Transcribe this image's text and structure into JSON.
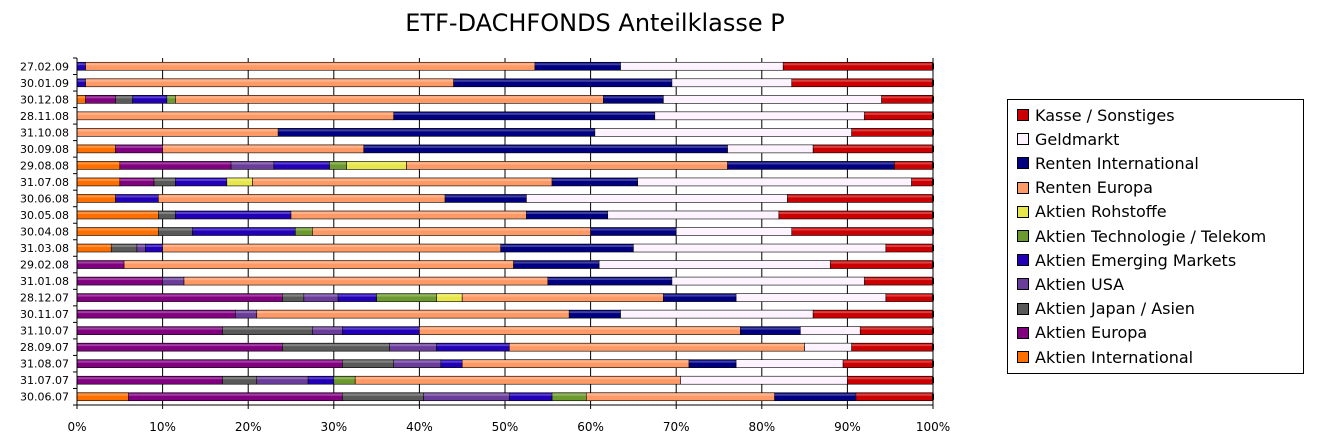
{
  "chart_data": {
    "type": "bar",
    "orientation": "horizontal-stacked-100",
    "title": "ETF-DACHFONDS Anteilklasse P",
    "xlabel": "",
    "ylabel": "",
    "xlim": [
      0,
      100
    ],
    "x_ticks": [
      "0%",
      "10%",
      "20%",
      "30%",
      "40%",
      "50%",
      "60%",
      "70%",
      "80%",
      "90%",
      "100%"
    ],
    "grid": true,
    "legend_position": "right",
    "categories": [
      "27.02.09",
      "30.01.09",
      "30.12.08",
      "28.11.08",
      "31.10.08",
      "30.09.08",
      "29.08.08",
      "31.07.08",
      "30.06.08",
      "30.05.08",
      "30.04.08",
      "31.03.08",
      "29.02.08",
      "31.01.08",
      "28.12.07",
      "30.11.07",
      "31.10.07",
      "28.09.07",
      "31.08.07",
      "31.07.07",
      "30.06.07"
    ],
    "series": [
      {
        "name": "Aktien International",
        "color": "#ff6f00",
        "values": [
          0,
          0,
          1,
          0,
          0,
          4.5,
          5,
          5,
          4.5,
          9.5,
          9.5,
          4,
          0,
          0,
          0,
          0,
          0,
          0,
          0,
          0,
          6
        ]
      },
      {
        "name": "Aktien Europa",
        "color": "#800080",
        "values": [
          0,
          0,
          3.5,
          0,
          0,
          5.5,
          13,
          4,
          0,
          0,
          0,
          0,
          5.5,
          10,
          24,
          18.5,
          17,
          24,
          31,
          17,
          25
        ]
      },
      {
        "name": "Aktien Japan / Asien",
        "color": "#595959",
        "values": [
          0,
          0,
          2,
          0,
          0,
          0,
          0,
          2.5,
          0,
          2,
          4,
          3,
          0,
          0,
          2.5,
          0,
          10.5,
          12.5,
          6,
          4,
          9.5
        ]
      },
      {
        "name": "Aktien USA",
        "color": "#6a3d9a",
        "values": [
          0,
          0,
          0,
          0,
          0,
          0,
          5,
          0,
          0,
          0,
          0,
          1,
          0,
          2.5,
          4,
          2.5,
          3.5,
          5.5,
          5.5,
          6,
          10
        ]
      },
      {
        "name": "Aktien Emerging Markets",
        "color": "#2200b8",
        "values": [
          1,
          1,
          4,
          0,
          0,
          0,
          6.5,
          6,
          5,
          13.5,
          12,
          2,
          0,
          0,
          4.5,
          0,
          9,
          8.5,
          2.5,
          3,
          5
        ]
      },
      {
        "name": "Aktien Technologie / Telekom",
        "color": "#6c9a2e",
        "values": [
          0,
          0,
          1,
          0,
          0,
          0,
          2,
          0,
          0,
          0,
          2,
          0,
          0,
          0,
          7,
          0,
          0,
          0,
          0,
          2.5,
          4
        ]
      },
      {
        "name": "Aktien Rohstoffe",
        "color": "#e7e64a",
        "values": [
          0,
          0,
          0,
          0,
          0,
          0,
          7,
          3,
          0,
          0,
          0,
          0,
          0,
          0,
          3,
          0,
          0,
          0,
          0,
          0,
          0
        ]
      },
      {
        "name": "Renten Europa",
        "color": "#ff9a66",
        "values": [
          52.5,
          43,
          50,
          37,
          23.5,
          23.5,
          37.5,
          35,
          33.5,
          27.5,
          32.5,
          39.5,
          45.5,
          42.5,
          23.5,
          36.5,
          37.5,
          34.5,
          26.5,
          38,
          22
        ]
      },
      {
        "name": "Renten International",
        "color": "#000080",
        "values": [
          10,
          25.5,
          7,
          30.5,
          37,
          42.5,
          19.5,
          10,
          9.5,
          9.5,
          10,
          15.5,
          10,
          14.5,
          8.5,
          6,
          7,
          0,
          5.5,
          0,
          9.5
        ]
      },
      {
        "name": "Geldmarkt",
        "color": "#fdf2ff",
        "values": [
          19,
          14,
          25.5,
          24.5,
          30,
          10,
          0,
          32,
          30.5,
          20,
          13.5,
          29.5,
          27,
          22.5,
          17.5,
          22.5,
          7,
          5.5,
          12.5,
          19.5,
          0
        ]
      },
      {
        "name": "Kasse / Sonstiges",
        "color": "#cc0000",
        "values": [
          17.5,
          16.5,
          6,
          8,
          9.5,
          14,
          4.5,
          2.5,
          17,
          18,
          16.5,
          5.5,
          12,
          8,
          5.5,
          14,
          8.5,
          9.5,
          10.5,
          10,
          9
        ]
      }
    ]
  }
}
